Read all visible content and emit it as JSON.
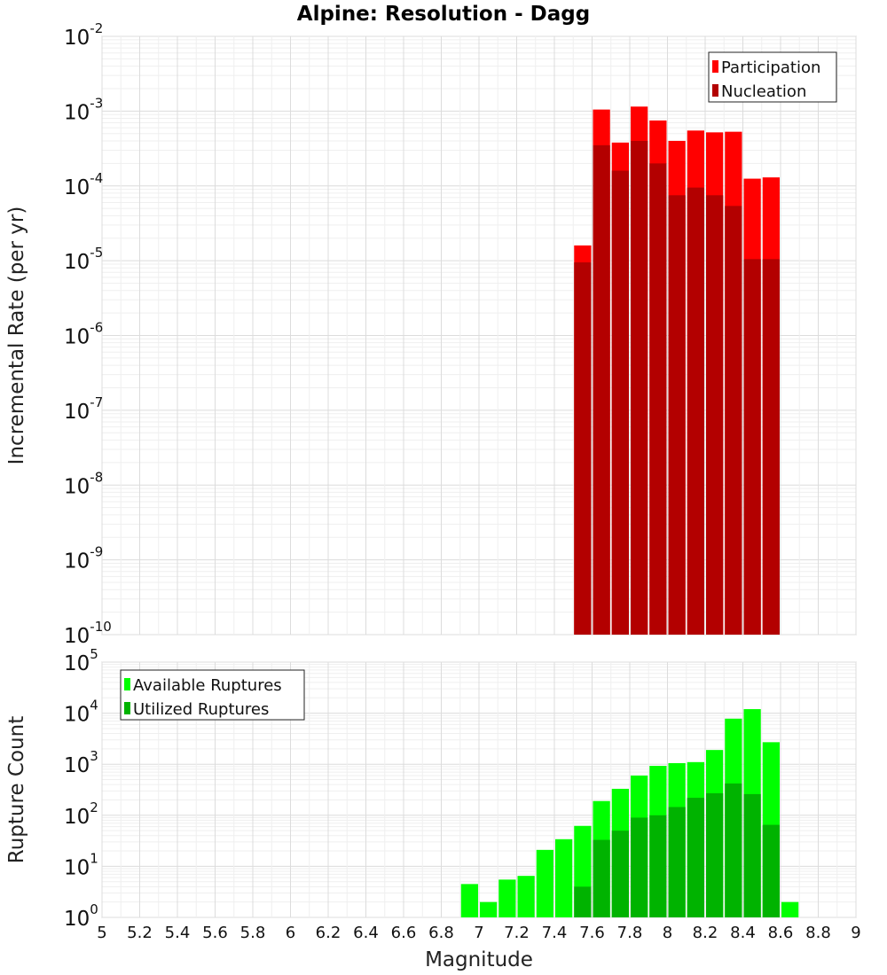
{
  "title": "Alpine: Resolution - Dagg",
  "xlabel": "Magnitude",
  "chart_data": [
    {
      "type": "bar",
      "scale": "log",
      "ylabel": "Incremental Rate (per yr)",
      "ylim_exp": [
        -10,
        -2
      ],
      "xlim": [
        5,
        9
      ],
      "bin_width": 0.1,
      "legend_position": "top-right",
      "overlay": true,
      "x": [
        7.55,
        7.65,
        7.75,
        7.85,
        7.95,
        8.05,
        8.15,
        8.25,
        8.35,
        8.45,
        8.55
      ],
      "series": [
        {
          "name": "Participation",
          "color": "#ff0000",
          "values": [
            1.6e-05,
            0.00105,
            0.00038,
            0.00115,
            0.00075,
            0.0004,
            0.00055,
            0.00052,
            0.00053,
            0.000125,
            0.00013
          ]
        },
        {
          "name": "Nucleation",
          "color": "#b30000",
          "values": [
            9.5e-06,
            0.00035,
            0.00016,
            0.0004,
            0.0002,
            7.5e-05,
            9.5e-05,
            7.5e-05,
            5.4e-05,
            1.05e-05,
            1.05e-05
          ]
        }
      ]
    },
    {
      "type": "bar",
      "scale": "log",
      "ylabel": "Rupture Count",
      "ylim_exp": [
        0,
        5
      ],
      "xlim": [
        5,
        9
      ],
      "bin_width": 0.1,
      "legend_position": "top-left",
      "overlay": true,
      "x": [
        6.95,
        7.05,
        7.15,
        7.25,
        7.35,
        7.45,
        7.55,
        7.65,
        7.75,
        7.85,
        7.95,
        8.05,
        8.15,
        8.25,
        8.35,
        8.45,
        8.55,
        8.65
      ],
      "series": [
        {
          "name": "Available Ruptures",
          "color": "#00ff00",
          "values": [
            4.5,
            2,
            5.5,
            6.5,
            21,
            34,
            62,
            190,
            330,
            600,
            930,
            1050,
            1100,
            1900,
            7800,
            12000,
            2700,
            2
          ]
        },
        {
          "name": "Utilized Ruptures",
          "color": "#00b300",
          "values": [
            null,
            null,
            null,
            null,
            null,
            null,
            4,
            33,
            50,
            90,
            100,
            145,
            220,
            270,
            420,
            260,
            65,
            null
          ]
        }
      ]
    }
  ],
  "xticks": [
    "5",
    "5.2",
    "5.4",
    "5.6",
    "5.8",
    "6",
    "6.2",
    "6.4",
    "6.6",
    "6.8",
    "7",
    "7.2",
    "7.4",
    "7.6",
    "7.8",
    "8",
    "8.2",
    "8.4",
    "8.6",
    "8.8",
    "9"
  ],
  "ytick_base": "10"
}
